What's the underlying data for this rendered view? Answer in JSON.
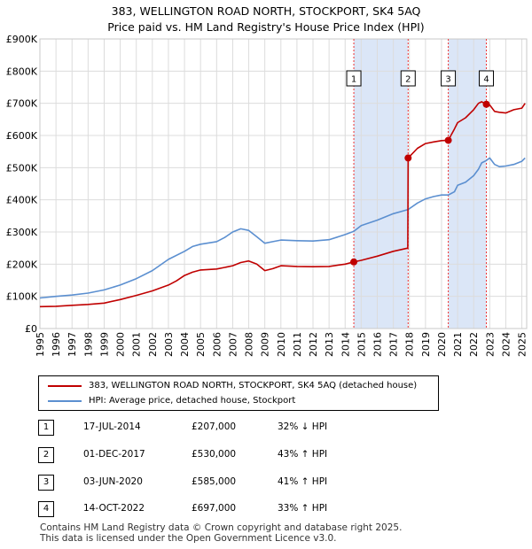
{
  "title_line1": "383, WELLINGTON ROAD NORTH, STOCKPORT, SK4 5AQ",
  "title_line2": "Price paid vs. HM Land Registry's House Price Index (HPI)",
  "colors": {
    "property_line": "#c00000",
    "hpi_line": "#5b8fd0",
    "highlight": "#dbe6f7",
    "grid": "#dcdcdc",
    "marker_dash": "#ee3333"
  },
  "chart_data": {
    "type": "line",
    "title": "Price paid vs. HM Land Registry's House Price Index (HPI)",
    "xlabel": "",
    "ylabel": "",
    "xlim": [
      1995,
      2025.3
    ],
    "ylim": [
      0,
      900000
    ],
    "x_ticks": [
      "1995",
      "1996",
      "1997",
      "1998",
      "1999",
      "2000",
      "2001",
      "2002",
      "2003",
      "2004",
      "2005",
      "2006",
      "2007",
      "2008",
      "2009",
      "2010",
      "2011",
      "2012",
      "2013",
      "2014",
      "2015",
      "2016",
      "2017",
      "2018",
      "2019",
      "2020",
      "2021",
      "2022",
      "2023",
      "2024",
      "2025"
    ],
    "y_ticks": [
      {
        "value": 0,
        "label": "£0"
      },
      {
        "value": 100000,
        "label": "£100K"
      },
      {
        "value": 200000,
        "label": "£200K"
      },
      {
        "value": 300000,
        "label": "£300K"
      },
      {
        "value": 400000,
        "label": "£400K"
      },
      {
        "value": 500000,
        "label": "£500K"
      },
      {
        "value": 600000,
        "label": "£600K"
      },
      {
        "value": 700000,
        "label": "£700K"
      },
      {
        "value": 800000,
        "label": "£800K"
      },
      {
        "value": 900000,
        "label": "£900K"
      }
    ],
    "highlight_ranges": [
      [
        2014.54,
        2017.92
      ],
      [
        2020.42,
        2022.79
      ]
    ],
    "series": [
      {
        "name": "383, WELLINGTON ROAD NORTH, STOCKPORT, SK4 5AQ (detached house)",
        "x": [
          1995.0,
          1996.0,
          1997.0,
          1998.0,
          1999.0,
          2000.0,
          2001.0,
          2002.0,
          2003.0,
          2003.5,
          2004.0,
          2004.5,
          2005.0,
          2006.0,
          2006.5,
          2007.0,
          2007.5,
          2008.0,
          2008.5,
          2009.0,
          2009.5,
          2010.0,
          2011.0,
          2012.0,
          2013.0,
          2014.0,
          2014.54,
          2015.0,
          2016.0,
          2017.0,
          2017.9,
          2017.92,
          2018.5,
          2019.0,
          2019.5,
          2020.0,
          2020.42,
          2020.8,
          2021.0,
          2021.5,
          2022.0,
          2022.3,
          2022.5,
          2022.79,
          2023.0,
          2023.3,
          2023.6,
          2024.0,
          2024.5,
          2025.0,
          2025.2
        ],
        "values": [
          68000,
          69000,
          72000,
          75000,
          79000,
          90000,
          103000,
          117000,
          135000,
          148000,
          165000,
          175000,
          182000,
          185000,
          190000,
          195000,
          205000,
          210000,
          200000,
          180000,
          186000,
          195000,
          193000,
          192000,
          193000,
          200000,
          207000,
          212000,
          225000,
          240000,
          250000,
          530000,
          560000,
          575000,
          580000,
          584000,
          585000,
          620000,
          640000,
          655000,
          680000,
          700000,
          705000,
          697000,
          695000,
          675000,
          672000,
          670000,
          680000,
          685000,
          700000
        ]
      },
      {
        "name": "HPI: Average price, detached house, Stockport",
        "x": [
          1995.0,
          1996.0,
          1997.0,
          1998.0,
          1999.0,
          2000.0,
          2001.0,
          2002.0,
          2003.0,
          2004.0,
          2004.5,
          2005.0,
          2006.0,
          2006.5,
          2007.0,
          2007.5,
          2008.0,
          2008.5,
          2009.0,
          2009.5,
          2010.0,
          2011.0,
          2012.0,
          2013.0,
          2014.0,
          2014.54,
          2015.0,
          2016.0,
          2017.0,
          2017.92,
          2018.5,
          2019.0,
          2019.5,
          2020.0,
          2020.42,
          2020.8,
          2021.0,
          2021.5,
          2022.0,
          2022.3,
          2022.5,
          2022.79,
          2023.0,
          2023.3,
          2023.6,
          2024.0,
          2024.5,
          2025.0,
          2025.2
        ],
        "values": [
          95000,
          100000,
          104000,
          110000,
          120000,
          135000,
          155000,
          180000,
          215000,
          240000,
          255000,
          262000,
          270000,
          283000,
          300000,
          310000,
          305000,
          285000,
          265000,
          270000,
          275000,
          273000,
          272000,
          276000,
          292000,
          302000,
          320000,
          337000,
          357000,
          370000,
          390000,
          403000,
          410000,
          415000,
          415000,
          425000,
          445000,
          455000,
          475000,
          495000,
          515000,
          522000,
          530000,
          510000,
          503000,
          505000,
          510000,
          520000,
          530000
        ]
      }
    ],
    "sales": [
      {
        "n": "1",
        "x": 2014.54,
        "y": 207000,
        "date": "17-JUL-2014",
        "price": "£207,000",
        "hpi": "32% ↓ HPI"
      },
      {
        "n": "2",
        "x": 2017.92,
        "y": 530000,
        "date": "01-DEC-2017",
        "price": "£530,000",
        "hpi": "43% ↑ HPI"
      },
      {
        "n": "3",
        "x": 2020.42,
        "y": 585000,
        "date": "03-JUN-2020",
        "price": "£585,000",
        "hpi": "41% ↑ HPI"
      },
      {
        "n": "4",
        "x": 2022.79,
        "y": 697000,
        "date": "14-OCT-2022",
        "price": "£697,000",
        "hpi": "33% ↑ HPI"
      }
    ]
  },
  "legend": [
    {
      "label": "383, WELLINGTON ROAD NORTH, STOCKPORT, SK4 5AQ (detached house)"
    },
    {
      "label": "HPI: Average price, detached house, Stockport"
    }
  ],
  "sales_table": [
    {
      "n": "1",
      "date": "17-JUL-2014",
      "price": "£207,000",
      "hpi": "32% ↓ HPI"
    },
    {
      "n": "2",
      "date": "01-DEC-2017",
      "price": "£530,000",
      "hpi": "43% ↑ HPI"
    },
    {
      "n": "3",
      "date": "03-JUN-2020",
      "price": "£585,000",
      "hpi": "41% ↑ HPI"
    },
    {
      "n": "4",
      "date": "14-OCT-2022",
      "price": "£697,000",
      "hpi": "33% ↑ HPI"
    }
  ],
  "footer_line1": "Contains HM Land Registry data © Crown copyright and database right 2025.",
  "footer_line2": "This data is licensed under the Open Government Licence v3.0."
}
